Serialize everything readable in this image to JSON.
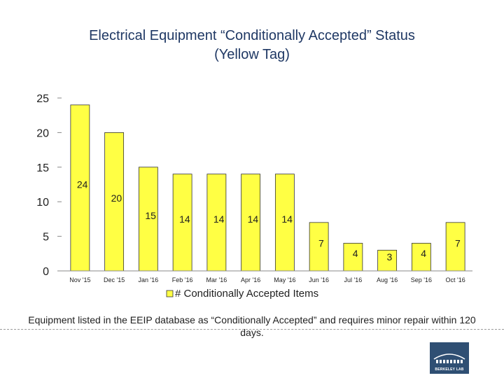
{
  "title_line1": "Electrical Equipment “Conditionally Accepted” Status",
  "title_line2": "(Yellow Tag)",
  "caption": "Equipment listed in the EEIP database as “Conditionally Accepted” and requires minor repair within 120 days.",
  "logo_text": "BERKELEY LAB",
  "colors": {
    "bar_fill": "#ffff44",
    "bar_stroke": "#333333",
    "title": "#1f3864"
  },
  "chart_data": {
    "type": "bar",
    "categories": [
      "Nov '15",
      "Dec '15",
      "Jan '16",
      "Feb '16",
      "Mar '16",
      "Apr '16",
      "May '16",
      "Jun '16",
      "Jul '16",
      "Aug '16",
      "Sep '16",
      "Oct '16"
    ],
    "series": [
      {
        "name": "# Conditionally Accepted Items",
        "values": [
          24,
          20,
          15,
          14,
          14,
          14,
          14,
          7,
          4,
          3,
          4,
          7
        ]
      }
    ],
    "y_ticks": [
      "0",
      "5",
      "10",
      "15",
      "20",
      "25"
    ],
    "ylim": [
      0,
      25
    ],
    "title": "",
    "xlabel": "",
    "ylabel": "",
    "grid": false,
    "legend_position": "bottom"
  }
}
